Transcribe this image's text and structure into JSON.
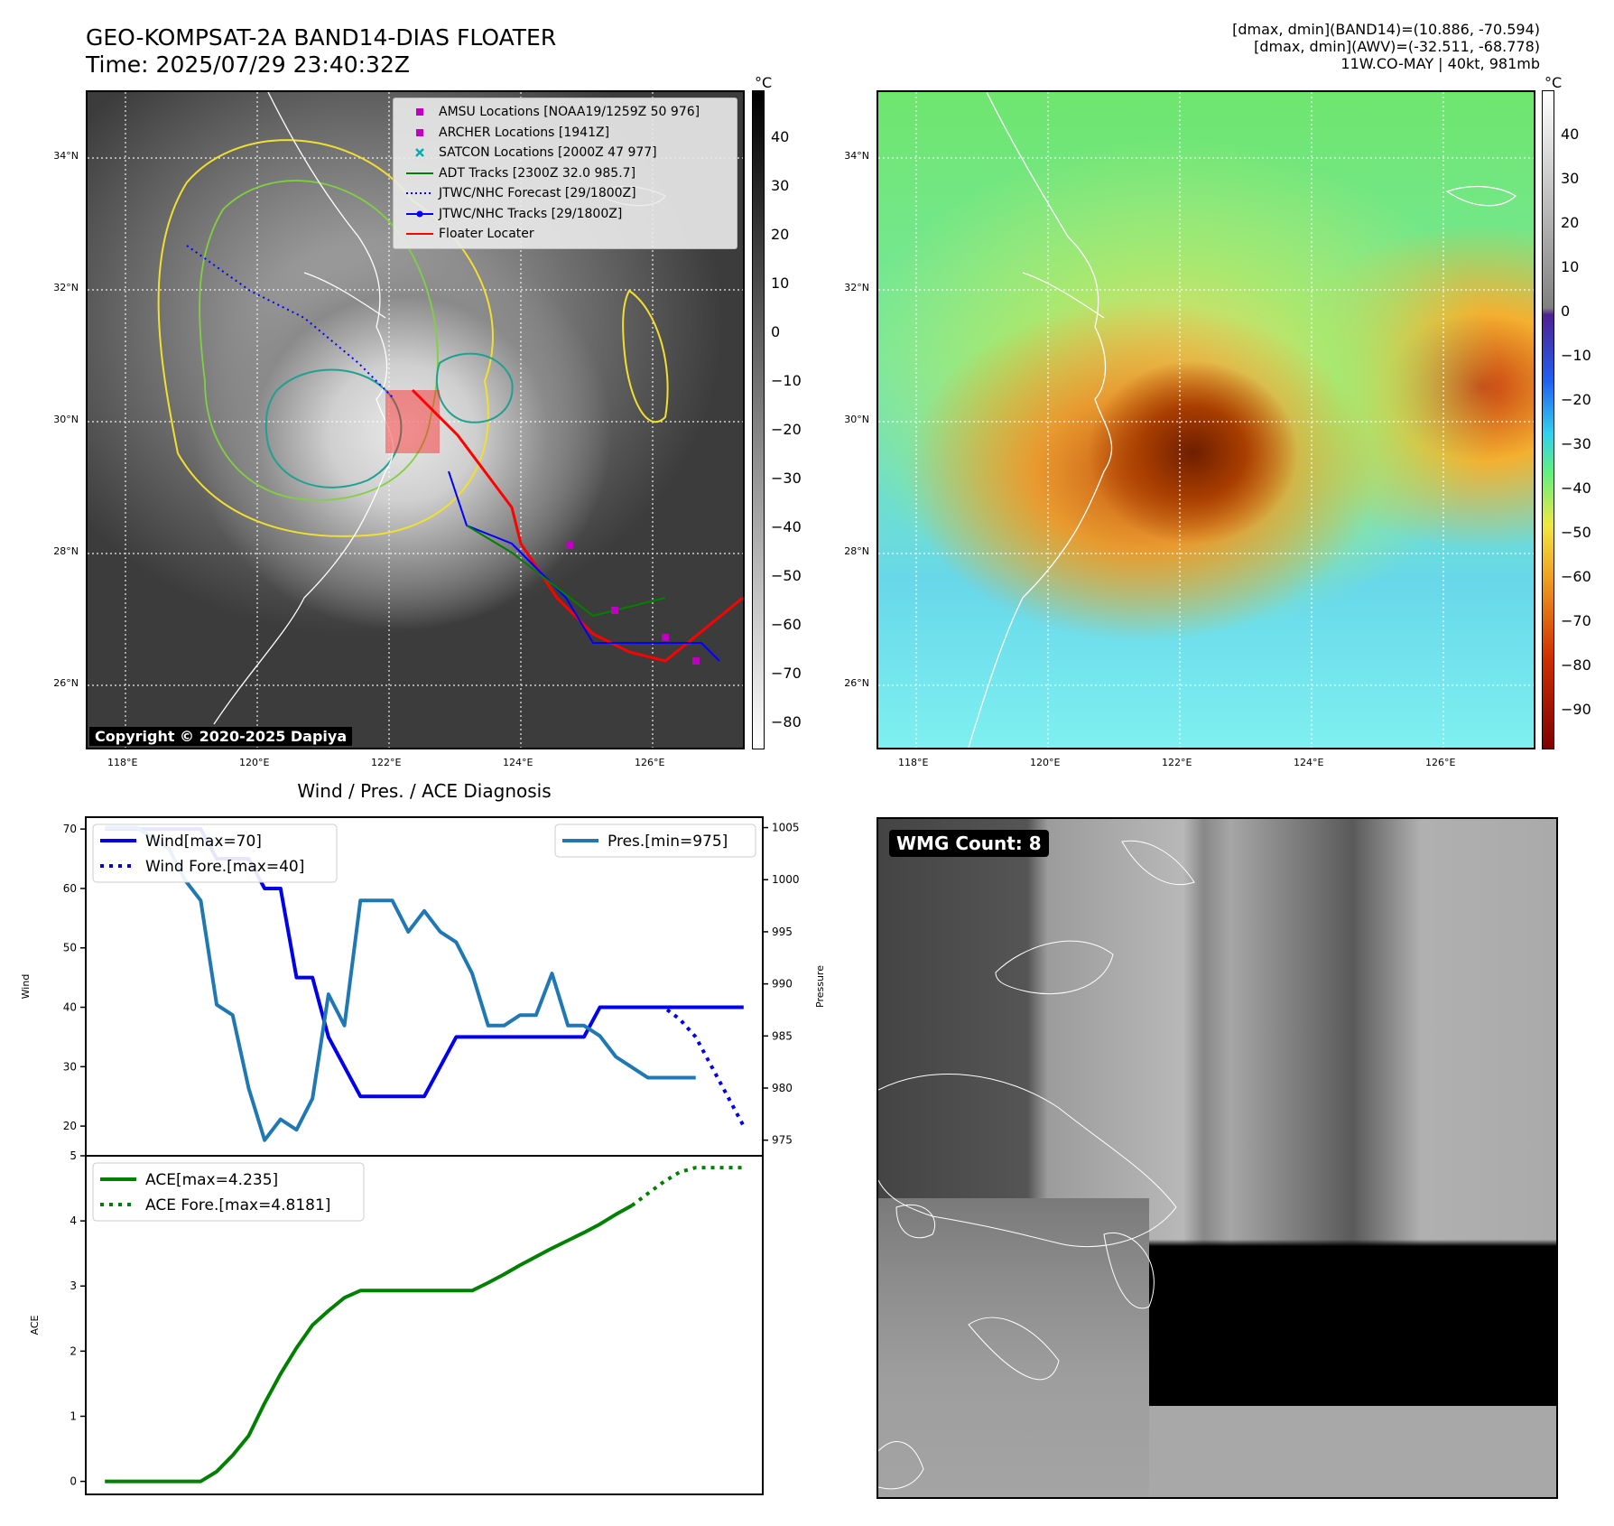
{
  "header": {
    "title_line1": "GEO-KOMPSAT-2A BAND14-DIAS FLOATER",
    "title_line2": "Time: 2025/07/29 23:40:32Z",
    "info_line1": "[dmax, dmin](BAND14)=(10.886, -70.594)",
    "info_line2": "[dmax, dmin](AWV)=(-32.511, -68.778)",
    "info_line3": "11W.CO-MAY | 40kt, 981mb"
  },
  "map": {
    "lat_labels": [
      "34°N",
      "32°N",
      "30°N",
      "28°N",
      "26°N"
    ],
    "lon_labels": [
      "118°E",
      "120°E",
      "122°E",
      "124°E",
      "126°E"
    ],
    "copyright": "Copyright © 2020-2025 Dapiya",
    "legend": [
      {
        "label": "AMSU Locations [NOAA19/1259Z 50 976]",
        "symbol": "square",
        "color": "#c000c0"
      },
      {
        "label": "ARCHER Locations [1941Z]",
        "symbol": "square",
        "color": "#c000c0"
      },
      {
        "label": "SATCON Locations [2000Z 47 977]",
        "symbol": "x",
        "color": "#00b0b0"
      },
      {
        "label": "ADT Tracks [2300Z 32.0 985.7]",
        "symbol": "line",
        "color": "#008000"
      },
      {
        "label": "JTWC/NHC Forecast [29/1800Z]",
        "symbol": "dotted",
        "color": "#0000ff"
      },
      {
        "label": "JTWC/NHC Tracks [29/1800Z]",
        "symbol": "line-dot",
        "color": "#0000ff"
      },
      {
        "label": "Floater Locater",
        "symbol": "line",
        "color": "#ff0000"
      }
    ],
    "colorbar_unit": "°C",
    "band14_ticks": [
      "40",
      "30",
      "20",
      "10",
      "0",
      "−10",
      "−20",
      "−30",
      "−40",
      "−50",
      "−60",
      "−70",
      "−80"
    ],
    "awv_ticks": [
      "40",
      "30",
      "20",
      "10",
      "0",
      "−10",
      "−20",
      "−30",
      "−40",
      "−50",
      "−60",
      "−70",
      "−80",
      "−90"
    ]
  },
  "wmg": {
    "badge": "WMG Count: 8"
  },
  "chart_data": [
    {
      "type": "line",
      "title": "Wind / Pres. / ACE Diagnosis",
      "ylabel": "Wind",
      "ylabel_right": "Pressure",
      "x": [
        0,
        1,
        2,
        3,
        4,
        5,
        6,
        7,
        8,
        9,
        10,
        11,
        12,
        13,
        14,
        15,
        16,
        17,
        18,
        19,
        20,
        21,
        22,
        23,
        24,
        25,
        26,
        27,
        28,
        29,
        30,
        31,
        32,
        33,
        34,
        35,
        36,
        37,
        38,
        39,
        40
      ],
      "ylim": [
        15,
        72
      ],
      "ylim_right": [
        973.5,
        1006
      ],
      "yticks": [
        "20",
        "30",
        "40",
        "50",
        "60",
        "70"
      ],
      "yticks_right": [
        "975",
        "980",
        "985",
        "990",
        "995",
        "1000",
        "1005"
      ],
      "series": [
        {
          "name": "Wind[max=70]",
          "axis": "left",
          "style": "solid",
          "color": "#0000ee",
          "x": [
            0,
            1,
            2,
            3,
            4,
            5,
            6,
            7,
            8,
            9,
            10,
            11,
            12,
            13,
            14,
            15,
            16,
            17,
            18,
            19,
            20,
            21,
            22,
            23,
            24,
            25,
            26,
            27,
            28,
            29,
            30,
            31,
            32,
            33,
            34,
            35,
            36,
            37,
            38,
            39,
            40
          ],
          "values": [
            70,
            70,
            70,
            70,
            70,
            70,
            70,
            65,
            65,
            65,
            60,
            60,
            45,
            45,
            35,
            30,
            25,
            25,
            25,
            25,
            25,
            30,
            35,
            35,
            35,
            35,
            35,
            35,
            35,
            35,
            35,
            40,
            40,
            40,
            40,
            40,
            40,
            40,
            40,
            40,
            40
          ]
        },
        {
          "name": "Wind Fore.[max=40]",
          "axis": "left",
          "style": "dotted",
          "color": "#0000ee",
          "x": [
            33,
            34,
            35,
            36,
            37,
            38,
            39,
            40
          ],
          "values": [
            40,
            40,
            40,
            38,
            35,
            30,
            25,
            20
          ]
        },
        {
          "name": "Pres.[min=975]",
          "axis": "right",
          "style": "solid",
          "color": "#1f77b4",
          "x": [
            0,
            1,
            2,
            3,
            4,
            5,
            6,
            7,
            8,
            9,
            10,
            11,
            12,
            13,
            14,
            15,
            16,
            17,
            18,
            19,
            20,
            21,
            22,
            23,
            24,
            25,
            26,
            27,
            28,
            29,
            30,
            31,
            32,
            33,
            34,
            35,
            36,
            37
          ],
          "values": [
            1005,
            1005,
            1005,
            1004,
            1003,
            1000,
            998,
            988,
            987,
            980,
            975,
            977,
            976,
            979,
            989,
            986,
            998,
            998,
            998,
            995,
            997,
            995,
            994,
            991,
            986,
            986,
            987,
            987,
            991,
            986,
            986,
            985,
            983,
            982,
            981,
            981,
            981,
            981
          ]
        }
      ]
    },
    {
      "type": "line",
      "ylabel": "ACE",
      "ylim": [
        -0.2,
        5
      ],
      "yticks": [
        "0",
        "1",
        "2",
        "3",
        "4",
        "5"
      ],
      "series": [
        {
          "name": "ACE[max=4.235]",
          "style": "solid",
          "color": "#008000",
          "x": [
            0,
            1,
            2,
            3,
            4,
            5,
            6,
            7,
            8,
            9,
            10,
            11,
            12,
            13,
            14,
            15,
            16,
            17,
            18,
            19,
            20,
            21,
            22,
            23,
            24,
            25,
            26,
            27,
            28,
            29,
            30,
            31,
            32,
            33
          ],
          "values": [
            0,
            0,
            0,
            0,
            0,
            0,
            0,
            0.15,
            0.4,
            0.7,
            1.2,
            1.65,
            2.05,
            2.4,
            2.62,
            2.82,
            2.93,
            2.93,
            2.93,
            2.93,
            2.93,
            2.93,
            2.93,
            2.93,
            3.05,
            3.18,
            3.32,
            3.45,
            3.58,
            3.7,
            3.82,
            3.95,
            4.1,
            4.235
          ]
        },
        {
          "name": "ACE Fore.[max=4.8181]",
          "style": "dotted",
          "color": "#008000",
          "x": [
            33,
            34,
            35,
            36,
            37,
            38,
            39,
            40
          ],
          "values": [
            4.235,
            4.42,
            4.6,
            4.75,
            4.8181,
            4.8181,
            4.8181,
            4.8181
          ]
        }
      ]
    }
  ]
}
